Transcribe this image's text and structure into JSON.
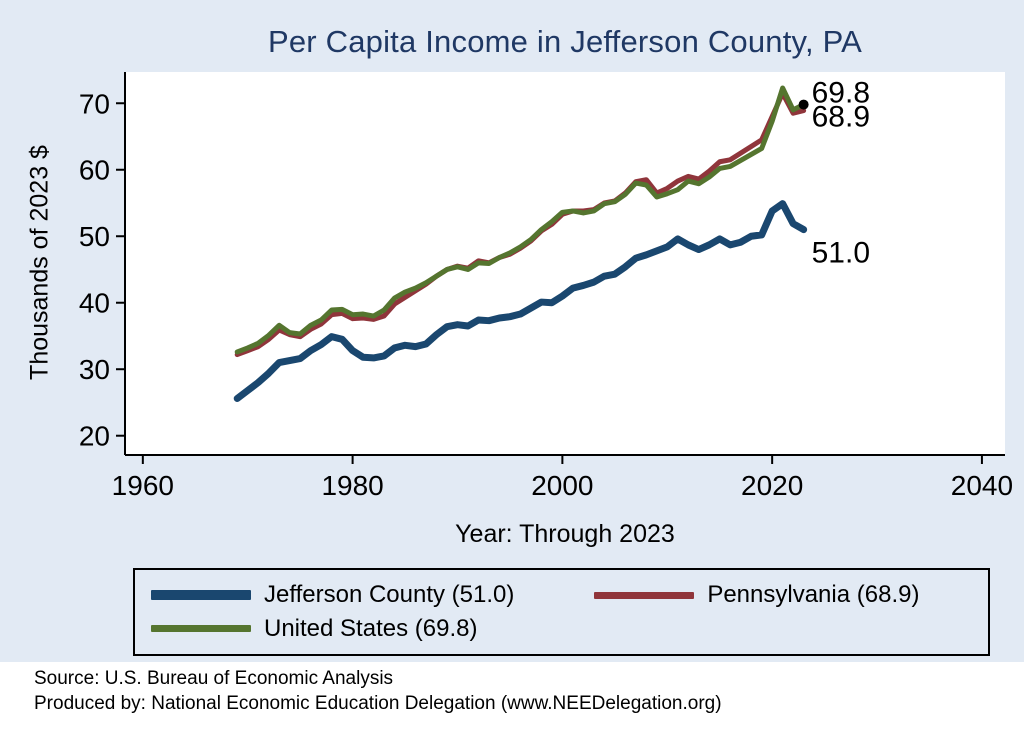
{
  "page": {
    "background": "#e2eaf4",
    "source_line1": "Source: U.S. Bureau of Economic Analysis",
    "source_line2": "Produced by: National Economic Education Delegation (www.NEEDelegation.org)"
  },
  "chart_data": {
    "type": "line",
    "title": "Per Capita Income in Jefferson County, PA",
    "title_color": "#1f3864",
    "xlabel": "Year: Through 2023",
    "ylabel": "Thousands of 2023 $",
    "xlim": [
      1958.3,
      2042.2
    ],
    "ylim": [
      17.1,
      74.7
    ],
    "x_ticks": [
      1960,
      1980,
      2000,
      2020,
      2040
    ],
    "y_ticks": [
      20,
      30,
      40,
      50,
      60,
      70
    ],
    "grid": false,
    "legend_position": "bottom",
    "years": [
      1969,
      1970,
      1971,
      1972,
      1973,
      1974,
      1975,
      1976,
      1977,
      1978,
      1979,
      1980,
      1981,
      1982,
      1983,
      1984,
      1985,
      1986,
      1987,
      1988,
      1989,
      1990,
      1991,
      1992,
      1993,
      1994,
      1995,
      1996,
      1997,
      1998,
      1999,
      2000,
      2001,
      2002,
      2003,
      2004,
      2005,
      2006,
      2007,
      2008,
      2009,
      2010,
      2011,
      2012,
      2013,
      2014,
      2015,
      2016,
      2017,
      2018,
      2019,
      2020,
      2021,
      2022,
      2023
    ],
    "series": [
      {
        "name": "Jefferson County",
        "color": "#1a476f",
        "line_width": 7,
        "end_label": "51.0",
        "end_marker": false,
        "values": [
          25.6,
          26.8,
          28.0,
          29.4,
          31.0,
          31.3,
          31.6,
          32.8,
          33.7,
          34.9,
          34.5,
          32.8,
          31.8,
          31.7,
          32.0,
          33.2,
          33.6,
          33.4,
          33.8,
          35.2,
          36.4,
          36.7,
          36.5,
          37.4,
          37.3,
          37.7,
          37.9,
          38.3,
          39.2,
          40.1,
          40.0,
          41.0,
          42.2,
          42.6,
          43.1,
          44.0,
          44.3,
          45.4,
          46.7,
          47.2,
          47.8,
          48.4,
          49.6,
          48.7,
          48.0,
          48.7,
          49.6,
          48.7,
          49.1,
          50.0,
          50.2,
          53.8,
          54.9,
          51.9,
          51.0
        ]
      },
      {
        "name": "Pennsylvania",
        "color": "#90353b",
        "line_width": 5,
        "end_label": "68.9",
        "end_marker": false,
        "values": [
          32.2,
          32.8,
          33.4,
          34.5,
          35.9,
          35.2,
          34.9,
          36.0,
          36.8,
          38.2,
          38.4,
          37.6,
          37.7,
          37.5,
          38.0,
          39.8,
          40.8,
          41.8,
          42.8,
          44.0,
          45.0,
          45.5,
          45.2,
          46.3,
          46.0,
          46.8,
          47.3,
          48.2,
          49.3,
          50.8,
          51.8,
          53.3,
          53.8,
          53.8,
          54.0,
          55.0,
          55.3,
          56.5,
          58.2,
          58.5,
          56.5,
          57.2,
          58.3,
          59.0,
          58.6,
          59.8,
          61.2,
          61.5,
          62.5,
          63.5,
          64.5,
          68.0,
          71.5,
          68.5,
          68.9
        ]
      },
      {
        "name": "United States",
        "color": "#55752f",
        "line_width": 5,
        "end_label": "69.8",
        "end_marker": true,
        "values": [
          32.6,
          33.2,
          33.9,
          35.1,
          36.6,
          35.5,
          35.3,
          36.6,
          37.4,
          38.9,
          39.0,
          38.2,
          38.3,
          38.0,
          38.9,
          40.7,
          41.6,
          42.2,
          43.0,
          44.0,
          45.0,
          45.4,
          45.0,
          46.0,
          45.9,
          46.8,
          47.5,
          48.4,
          49.5,
          51.0,
          52.2,
          53.6,
          53.8,
          53.5,
          53.8,
          54.9,
          55.2,
          56.3,
          58.0,
          57.7,
          55.9,
          56.4,
          57.0,
          58.3,
          57.9,
          58.9,
          60.2,
          60.5,
          61.4,
          62.3,
          63.2,
          67.3,
          72.3,
          69.0,
          69.8
        ]
      }
    ],
    "legend": {
      "items": [
        {
          "label": "Jefferson County (51.0)",
          "series": 0
        },
        {
          "label": "Pennsylvania (68.9)",
          "series": 1
        },
        {
          "label": "United States (69.8)",
          "series": 2
        }
      ]
    }
  }
}
